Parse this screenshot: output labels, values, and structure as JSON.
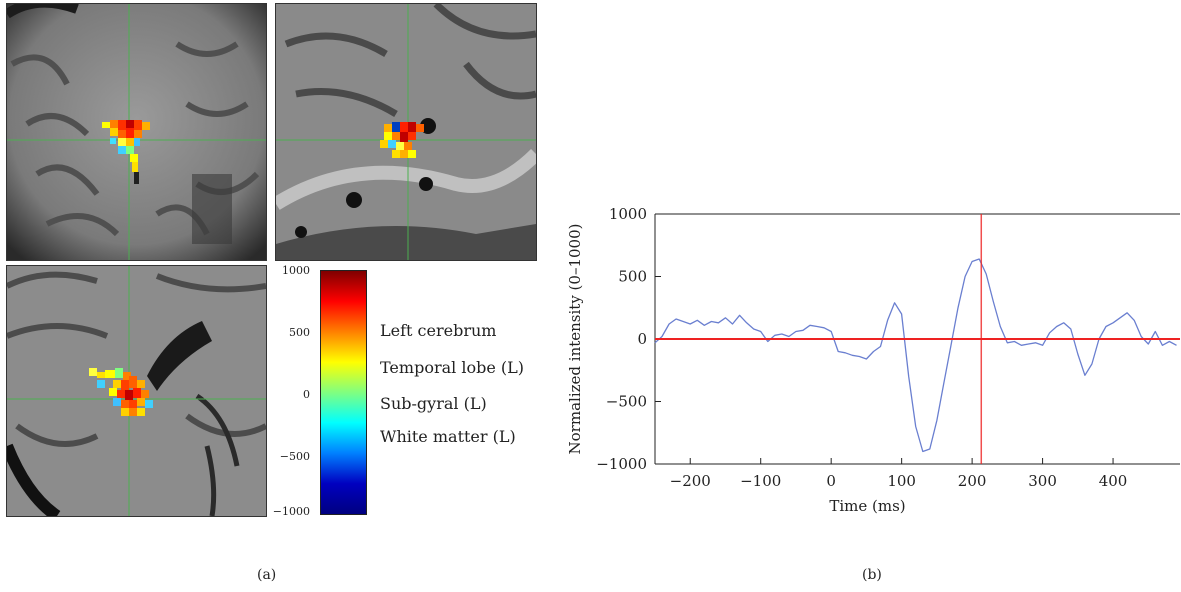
{
  "panel_a": {
    "label": "(a)",
    "colorbar": {
      "ticks": [
        "1000",
        "500",
        "0",
        "−500",
        "−1000"
      ],
      "tick_values": [
        1000,
        500,
        0,
        -500,
        -1000
      ],
      "colors": [
        "#800000",
        "#ff0000",
        "#ff8000",
        "#ffff00",
        "#80ff80",
        "#00ffff",
        "#0080ff",
        "#0000c0",
        "#000080"
      ]
    },
    "regions": [
      "Left cerebrum",
      "Temporal lobe (L)",
      "Sub-gyral (L)",
      "White matter (L)"
    ]
  },
  "panel_b": {
    "label": "(b)",
    "chart_data": {
      "type": "line",
      "xlabel": "Time (ms)",
      "ylabel": "Normalized intensity (0–1000)",
      "xlim": [
        -250,
        495
      ],
      "ylim": [
        -1000,
        1000
      ],
      "x_ticks": [
        -200,
        -100,
        0,
        100,
        200,
        300,
        400
      ],
      "x_tick_labels": [
        "−200",
        "−100",
        "0",
        "100",
        "200",
        "300",
        "400"
      ],
      "y_ticks": [
        1000,
        500,
        0,
        -500,
        -1000
      ],
      "y_tick_labels": [
        "1000",
        "500",
        "0",
        "−500",
        "−1000"
      ],
      "series": [
        {
          "color": "#6a7fd0",
          "x": [
            -250,
            -240,
            -230,
            -220,
            -210,
            -200,
            -190,
            -180,
            -170,
            -160,
            -150,
            -140,
            -130,
            -120,
            -110,
            -100,
            -90,
            -80,
            -70,
            -60,
            -50,
            -40,
            -30,
            -20,
            -10,
            0,
            10,
            20,
            30,
            40,
            50,
            60,
            70,
            80,
            90,
            100,
            110,
            120,
            130,
            140,
            150,
            160,
            170,
            180,
            190,
            200,
            210,
            220,
            230,
            240,
            250,
            260,
            270,
            280,
            290,
            300,
            310,
            320,
            330,
            340,
            350,
            360,
            370,
            380,
            390,
            400,
            410,
            420,
            430,
            440,
            450,
            460,
            470,
            480,
            490
          ],
          "y": [
            -30,
            20,
            120,
            160,
            140,
            120,
            150,
            110,
            140,
            130,
            170,
            120,
            190,
            130,
            80,
            60,
            -20,
            30,
            40,
            20,
            60,
            70,
            110,
            100,
            90,
            60,
            -100,
            -110,
            -130,
            -140,
            -160,
            -100,
            -60,
            150,
            290,
            200,
            -300,
            -700,
            -900,
            -880,
            -650,
            -350,
            -50,
            250,
            500,
            620,
            640,
            520,
            300,
            100,
            -30,
            -20,
            -50,
            -40,
            -30,
            -50,
            50,
            100,
            130,
            80,
            -120,
            -290,
            -200,
            0,
            100,
            130,
            170,
            210,
            150,
            20,
            -40,
            60,
            -50,
            -20,
            -50
          ]
        }
      ],
      "reference_lines": {
        "horizontal_y": 0,
        "vertical_x": 213,
        "color": "#ee2222"
      }
    }
  }
}
